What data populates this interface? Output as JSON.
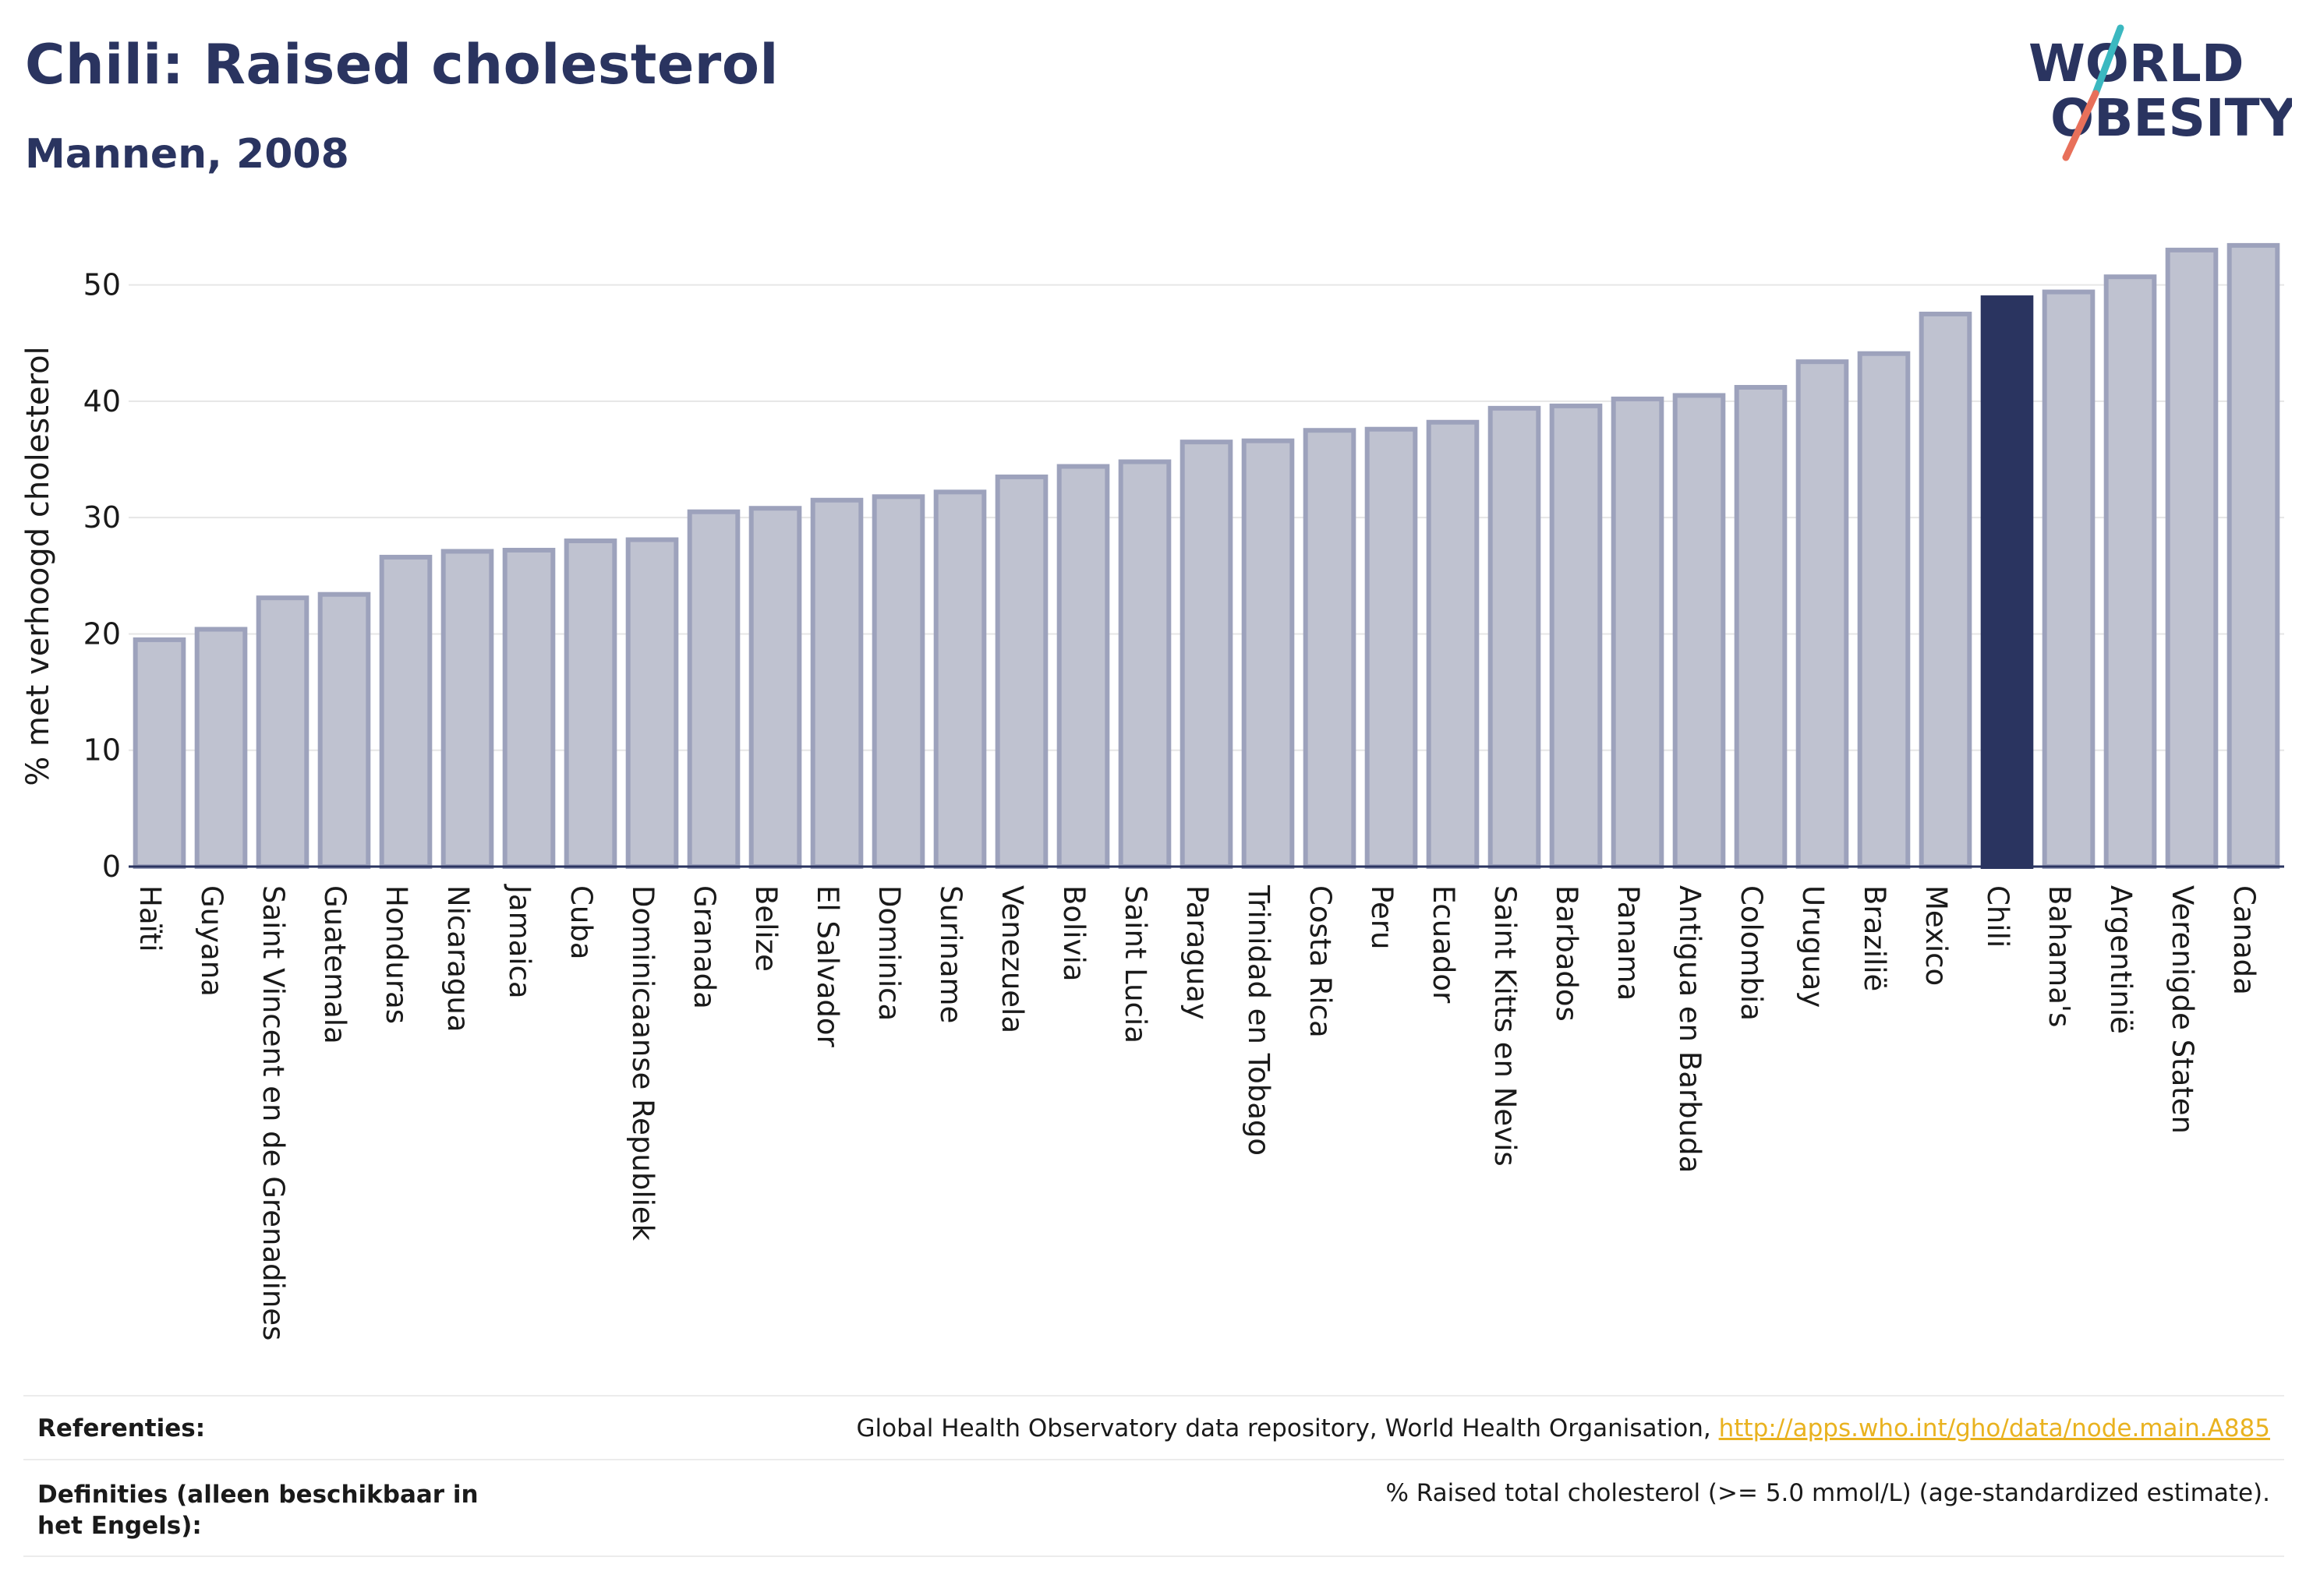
{
  "title": "Chili: Raised cholesterol",
  "subtitle": "Mannen, 2008",
  "logo": {
    "line1": "WORLD",
    "line2": "OBESITY"
  },
  "colors": {
    "highlight": "#2a3460",
    "bar_fill": "#bfc2d0",
    "bar_stroke": "#9da2bc",
    "text": "#2a3460",
    "link": "#e9b21f"
  },
  "chart_data": {
    "type": "bar",
    "ylabel": "% met verhoogd cholesterol",
    "xlabel": "",
    "ylim": [
      0,
      55
    ],
    "yticks": [
      0,
      10,
      20,
      30,
      40,
      50
    ],
    "grid": true,
    "highlight": "Chili",
    "categories": [
      "Haïti",
      "Guyana",
      "Saint Vincent en de Grenadines",
      "Guatemala",
      "Honduras",
      "Nicaragua",
      "Jamaica",
      "Cuba",
      "Dominicaanse Republiek",
      "Granada",
      "Belize",
      "El Salvador",
      "Dominica",
      "Suriname",
      "Venezuela",
      "Bolivia",
      "Saint Lucia",
      "Paraguay",
      "Trinidad en Tobago",
      "Costa Rica",
      "Peru",
      "Ecuador",
      "Saint Kitts en Nevis",
      "Barbados",
      "Panama",
      "Antigua en Barbuda",
      "Colombia",
      "Uruguay",
      "Brazilië",
      "Mexico",
      "Chili",
      "Bahama's",
      "Argentinië",
      "Verenigde Staten",
      "Canada"
    ],
    "values": [
      19.5,
      20.4,
      23.1,
      23.4,
      26.6,
      27.1,
      27.2,
      28.0,
      28.1,
      30.5,
      30.8,
      31.5,
      31.8,
      32.2,
      33.5,
      34.4,
      34.8,
      36.5,
      36.6,
      37.5,
      37.6,
      38.2,
      39.4,
      39.6,
      40.2,
      40.5,
      41.2,
      43.4,
      44.1,
      47.5,
      48.9,
      49.4,
      50.7,
      53.0,
      53.4
    ]
  },
  "references": {
    "label": "Referenties:",
    "text": "Global Health Observatory data repository, World Health Organisation, ",
    "link": "http://apps.who.int/gho/data/node.main.A885"
  },
  "definitions": {
    "label": "Definities (alleen beschikbaar in het Engels):",
    "text": "% Raised total cholesterol (>= 5.0 mmol/L) (age-standardized estimate)."
  }
}
